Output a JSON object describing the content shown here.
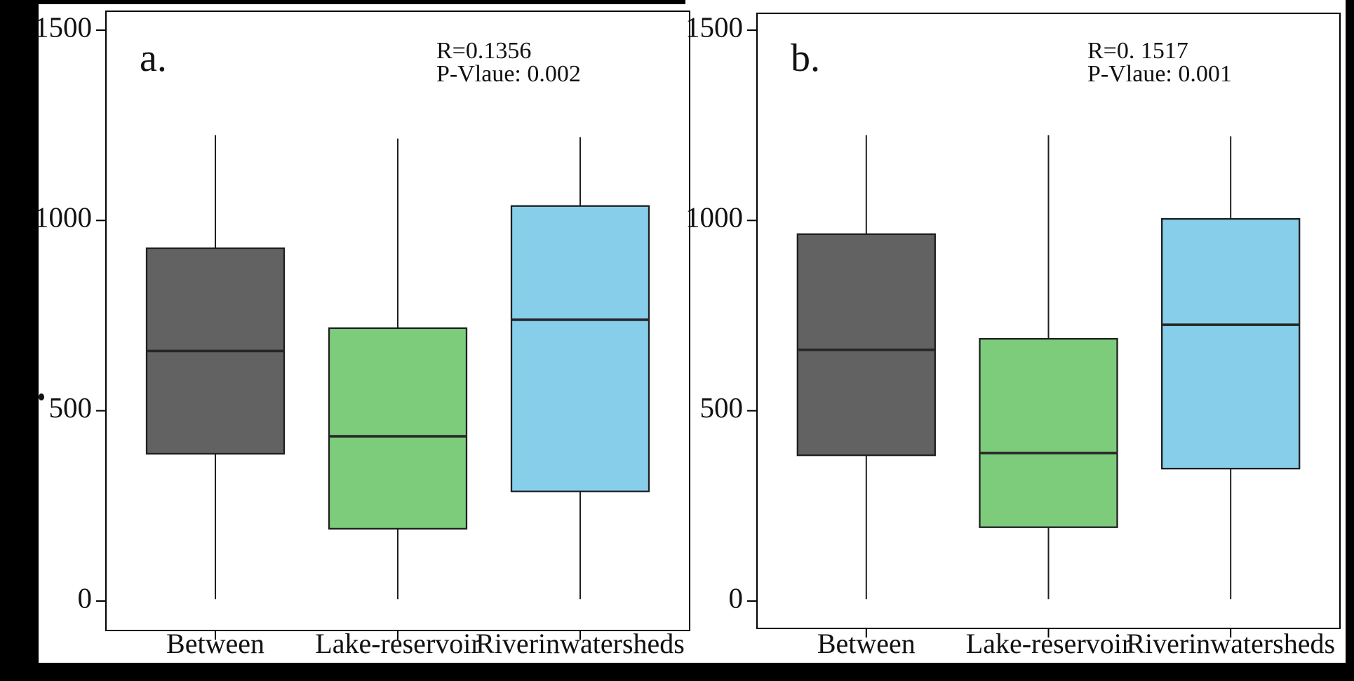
{
  "figure": {
    "background_color": "#000000",
    "paper_color": "#ffffff",
    "panels": [
      {
        "label": "a.",
        "annotation_r": "R=0.1356",
        "annotation_p": "P-Vlaue: 0.002"
      },
      {
        "label": "b.",
        "annotation_r": "R=0. 1517",
        "annotation_p": "P-Vlaue: 0.001"
      }
    ]
  },
  "chart_data": [
    {
      "type": "boxplot",
      "panel_label": "a.",
      "title": "",
      "xlabel": "",
      "ylabel": "",
      "categories": [
        "Between",
        "Lake-reservoir",
        "Riverinwatersheds"
      ],
      "ytick_labels": [
        "0",
        "500",
        "1000",
        "1500"
      ],
      "yticks": [
        0,
        500,
        1000,
        1500
      ],
      "ylim": [
        -77,
        1550
      ],
      "grid": false,
      "legend": "none",
      "annotations": [
        "R=0.1356",
        "P-Vlaue: 0.002"
      ],
      "boxes": [
        {
          "category": "Between",
          "color": "#626262",
          "min": 5,
          "q1": 387,
          "median": 657,
          "q3": 927,
          "max": 1224
        },
        {
          "category": "Lake-reservoir",
          "color": "#7ccc7c",
          "min": 5,
          "q1": 190,
          "median": 433,
          "q3": 717,
          "max": 1215
        },
        {
          "category": "Riverinwatersheds",
          "color": "#87ceeb",
          "min": 5,
          "q1": 288,
          "median": 739,
          "q3": 1038,
          "max": 1219
        }
      ]
    },
    {
      "type": "boxplot",
      "panel_label": "b.",
      "title": "",
      "xlabel": "",
      "ylabel": "",
      "categories": [
        "Between",
        "Lake-reservoir",
        "Riverinwatersheds"
      ],
      "ytick_labels": [
        "0",
        "500",
        "1000",
        "1500"
      ],
      "yticks": [
        0,
        500,
        1000,
        1500
      ],
      "ylim": [
        -77,
        1550
      ],
      "grid": false,
      "legend": "none",
      "annotations": [
        "R=0. 1517",
        "P-Vlaue: 0.001"
      ],
      "boxes": [
        {
          "category": "Between",
          "color": "#626262",
          "min": 5,
          "q1": 383,
          "median": 660,
          "q3": 964,
          "max": 1224
        },
        {
          "category": "Lake-reservoir",
          "color": "#7ccc7c",
          "min": 5,
          "q1": 194,
          "median": 389,
          "q3": 689,
          "max": 1224
        },
        {
          "category": "Riverinwatersheds",
          "color": "#87ceeb",
          "min": 5,
          "q1": 348,
          "median": 726,
          "q3": 1004,
          "max": 1221
        }
      ]
    }
  ]
}
